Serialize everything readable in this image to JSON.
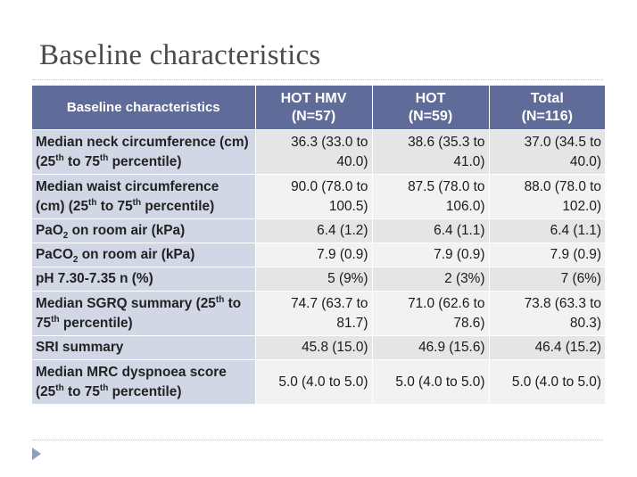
{
  "title": "Baseline characteristics",
  "table": {
    "headers": {
      "col1": "Baseline characteristics",
      "col2_line1": "HOT HMV",
      "col2_line2": "(N=57)",
      "col3_line1": "HOT",
      "col3_line2": "(N=59)",
      "col4_line1": "Total",
      "col4_line2": "(N=116)"
    },
    "rows": [
      {
        "label": {
          "a": "Median neck circumference (cm) (25",
          "a_sup": "th",
          "b": " to 75",
          "b_sup": "th",
          "c": " percentile)"
        },
        "hot_hmv": "36.3 (33.0 to 40.0)",
        "hot": "38.6 (35.3 to 41.0)",
        "total": "37.0 (34.5 to 40.0)"
      },
      {
        "label": {
          "a": "Median waist circumference (cm) (25",
          "a_sup": "th",
          "b": " to 75",
          "b_sup": "th",
          "c": " percentile)"
        },
        "hot_hmv": "90.0 (78.0 to 100.5)",
        "hot": "87.5 (78.0 to 106.0)",
        "total": "88.0 (78.0 to 102.0)"
      },
      {
        "label": {
          "a": "PaO",
          "a_sub": "2",
          "b": " on room air (kPa)"
        },
        "hot_hmv": "6.4 (1.2)",
        "hot": "6.4 (1.1)",
        "total": "6.4 (1.1)"
      },
      {
        "label": {
          "a": "PaCO",
          "a_sub": "2",
          "b": " on room air (kPa)"
        },
        "hot_hmv": "7.9 (0.9)",
        "hot": "7.9 (0.9)",
        "total": "7.9 (0.9)"
      },
      {
        "label": {
          "a": "pH 7.30-7.35 n (%)"
        },
        "hot_hmv": "5 (9%)",
        "hot": "2 (3%)",
        "total": "7 (6%)"
      },
      {
        "label": {
          "a": "Median SGRQ summary (25",
          "a_sup": "th",
          "b": " to 75",
          "b_sup": "th",
          "c": " percentile)"
        },
        "hot_hmv": "74.7 (63.7 to 81.7)",
        "hot": "71.0 (62.6 to 78.6)",
        "total": "73.8 (63.3 to 80.3)"
      },
      {
        "label": {
          "a": "SRI summary"
        },
        "hot_hmv": "45.8 (15.0)",
        "hot": "46.9 (15.6)",
        "total": "46.4 (15.2)"
      },
      {
        "label": {
          "a": "Median MRC dyspnoea score (25",
          "a_sup": "th",
          "b": " to 75",
          "b_sup": "th",
          "c": " percentile)"
        },
        "hot_hmv": "5.0 (4.0 to 5.0)",
        "hot": "5.0 (4.0 to 5.0)",
        "total": "5.0 (4.0 to 5.0)"
      }
    ]
  }
}
